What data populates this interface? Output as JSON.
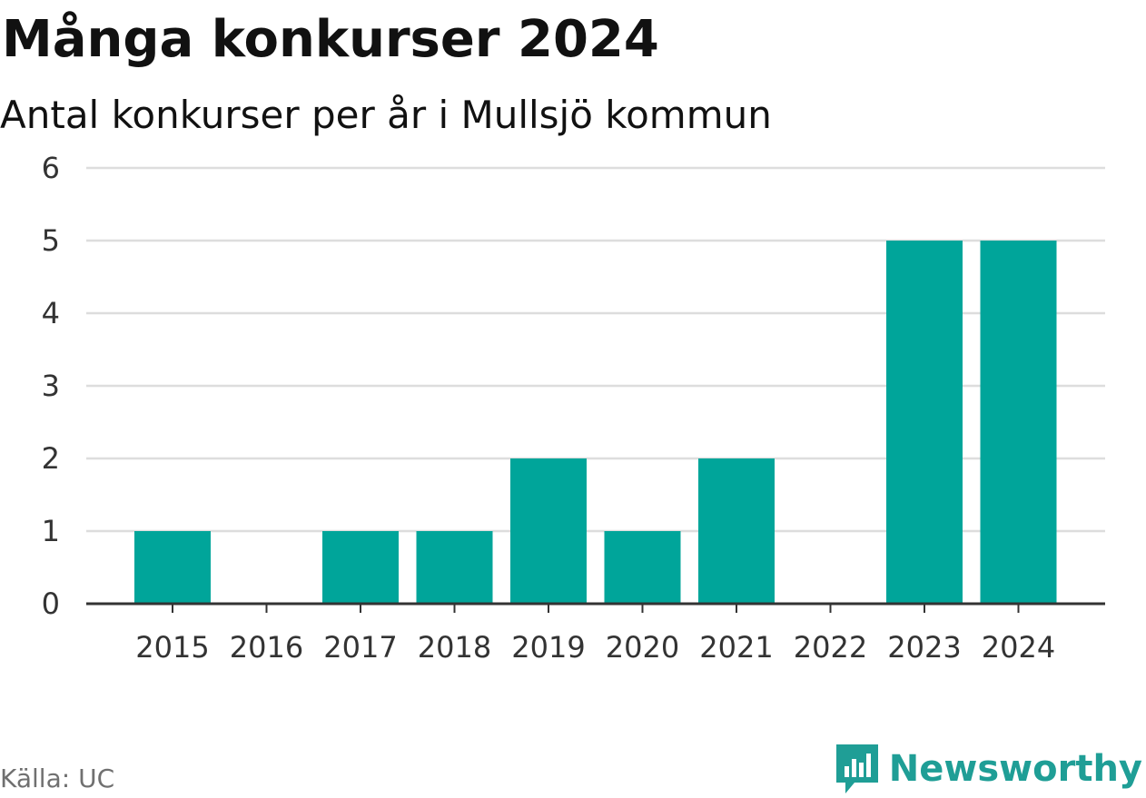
{
  "header": {
    "title": "Många konkurser 2024",
    "subtitle": "Antal konkurser per år i Mullsjö kommun"
  },
  "footer": {
    "source": "Källa: UC",
    "brand": "Newsworthy"
  },
  "colors": {
    "bar": "#00a59a",
    "grid": "#dddddd",
    "axis": "#333333",
    "brand": "#1f9e96"
  },
  "icons": {
    "brand_logo": "newsworthy-logo-icon"
  },
  "chart_data": {
    "type": "bar",
    "title": "Många konkurser 2024",
    "subtitle": "Antal konkurser per år i Mullsjö kommun",
    "xlabel": "",
    "ylabel": "",
    "categories": [
      "2015",
      "2016",
      "2017",
      "2018",
      "2019",
      "2020",
      "2021",
      "2022",
      "2023",
      "2024"
    ],
    "values": [
      1,
      0,
      1,
      1,
      2,
      1,
      2,
      0,
      5,
      5
    ],
    "ylim": [
      0,
      6
    ],
    "yticks": [
      0,
      1,
      2,
      3,
      4,
      5,
      6
    ],
    "grid": true,
    "legend": "none"
  }
}
